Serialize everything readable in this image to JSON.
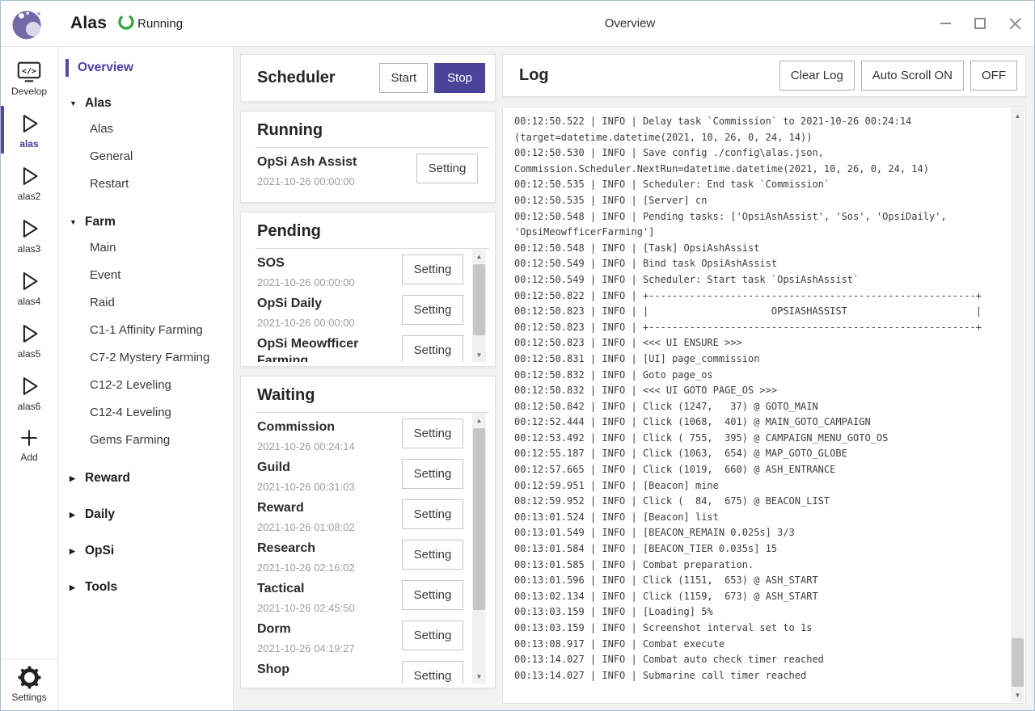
{
  "header": {
    "app_name": "Alas",
    "status": "Running",
    "window_title": "Overview"
  },
  "rail": {
    "items": [
      {
        "id": "develop",
        "label": "Develop",
        "icon": "develop",
        "active": false
      },
      {
        "id": "alas",
        "label": "alas",
        "icon": "play",
        "active": true
      },
      {
        "id": "alas2",
        "label": "alas2",
        "icon": "play",
        "active": false
      },
      {
        "id": "alas3",
        "label": "alas3",
        "icon": "play",
        "active": false
      },
      {
        "id": "alas4",
        "label": "alas4",
        "icon": "play",
        "active": false
      },
      {
        "id": "alas5",
        "label": "alas5",
        "icon": "play",
        "active": false
      },
      {
        "id": "alas6",
        "label": "alas6",
        "icon": "play",
        "active": false
      },
      {
        "id": "add",
        "label": "Add",
        "icon": "plus",
        "active": false
      }
    ],
    "settings_label": "Settings"
  },
  "nav": {
    "items": [
      {
        "type": "link",
        "label": "Overview",
        "active": true
      },
      {
        "type": "group",
        "label": "Alas",
        "expanded": true,
        "children": [
          "Alas",
          "General",
          "Restart"
        ]
      },
      {
        "type": "group",
        "label": "Farm",
        "expanded": true,
        "children": [
          "Main",
          "Event",
          "Raid",
          "C1-1 Affinity Farming",
          "C7-2 Mystery Farming",
          "C12-2 Leveling",
          "C12-4 Leveling",
          "Gems Farming"
        ]
      },
      {
        "type": "group",
        "label": "Reward",
        "expanded": false,
        "children": []
      },
      {
        "type": "group",
        "label": "Daily",
        "expanded": false,
        "children": []
      },
      {
        "type": "group",
        "label": "OpSi",
        "expanded": false,
        "children": []
      },
      {
        "type": "group",
        "label": "Tools",
        "expanded": false,
        "children": []
      }
    ]
  },
  "scheduler": {
    "title": "Scheduler",
    "start_label": "Start",
    "stop_label": "Stop",
    "setting_label": "Setting",
    "sections": [
      {
        "title": "Running",
        "tasks": [
          {
            "name": "OpSi Ash Assist",
            "time": "2021-10-26 00:00:00"
          }
        ]
      },
      {
        "title": "Pending",
        "tasks": [
          {
            "name": "SOS",
            "time": "2021-10-26 00:00:00"
          },
          {
            "name": "OpSi Daily",
            "time": "2021-10-26 00:00:00"
          },
          {
            "name": "OpSi Meowfficer Farming"
          }
        ]
      },
      {
        "title": "Waiting",
        "tasks": [
          {
            "name": "Commission",
            "time": "2021-10-26 00:24:14"
          },
          {
            "name": "Guild",
            "time": "2021-10-26 00:31:03"
          },
          {
            "name": "Reward",
            "time": "2021-10-26 01:08:02"
          },
          {
            "name": "Research",
            "time": "2021-10-26 02:16:02"
          },
          {
            "name": "Tactical",
            "time": "2021-10-26 02:45:50"
          },
          {
            "name": "Dorm",
            "time": "2021-10-26 04:19:27"
          },
          {
            "name": "Shop"
          }
        ]
      }
    ]
  },
  "log": {
    "title": "Log",
    "clear_label": "Clear Log",
    "autoscroll_on_label": "Auto Scroll ON",
    "autoscroll_off_label": "OFF",
    "lines": [
      "00:12:50.522 | INFO | Delay task `Commission` to 2021-10-26 00:24:14",
      "(target=datetime.datetime(2021, 10, 26, 0, 24, 14))",
      "00:12:50.530 | INFO | Save config ./config\\alas.json,",
      "Commission.Scheduler.NextRun=datetime.datetime(2021, 10, 26, 0, 24, 14)",
      "00:12:50.535 | INFO | Scheduler: End task `Commission`",
      "00:12:50.535 | INFO | [Server] cn",
      "00:12:50.548 | INFO | Pending tasks: ['OpsiAshAssist', 'Sos', 'OpsiDaily',",
      "'OpsiMeowfficerFarming']",
      "00:12:50.548 | INFO | [Task] OpsiAshAssist",
      "00:12:50.549 | INFO | Bind task OpsiAshAssist",
      "00:12:50.549 | INFO | Scheduler: Start task `OpsiAshAssist`",
      "00:12:50.822 | INFO | +--------------------------------------------------------+",
      "00:12:50.823 | INFO | |                     OPSIASHASSIST                      |",
      "00:12:50.823 | INFO | +--------------------------------------------------------+",
      "00:12:50.823 | INFO | <<< UI ENSURE >>>",
      "00:12:50.831 | INFO | [UI] page_commission",
      "00:12:50.832 | INFO | Goto page_os",
      "00:12:50.832 | INFO | <<< UI GOTO PAGE_OS >>>",
      "00:12:50.842 | INFO | Click (1247,   37) @ GOTO_MAIN",
      "00:12:52.444 | INFO | Click (1068,  401) @ MAIN_GOTO_CAMPAIGN",
      "00:12:53.492 | INFO | Click ( 755,  395) @ CAMPAIGN_MENU_GOTO_OS",
      "00:12:55.187 | INFO | Click (1063,  654) @ MAP_GOTO_GLOBE",
      "00:12:57.665 | INFO | Click (1019,  660) @ ASH_ENTRANCE",
      "00:12:59.951 | INFO | [Beacon] mine",
      "00:12:59.952 | INFO | Click (  84,  675) @ BEACON_LIST",
      "00:13:01.524 | INFO | [Beacon] list",
      "00:13:01.549 | INFO | [BEACON_REMAIN 0.025s] 3/3",
      "00:13:01.584 | INFO | [BEACON_TIER 0.035s] 15",
      "00:13:01.585 | INFO | Combat preparation.",
      "00:13:01.596 | INFO | Click (1151,  653) @ ASH_START",
      "00:13:02.134 | INFO | Click (1159,  673) @ ASH_START",
      "00:13:03.159 | INFO | [Loading] 5%",
      "00:13:03.159 | INFO | Screenshot interval set to 1s",
      "00:13:08.917 | INFO | Combat execute",
      "00:13:14.027 | INFO | Combat auto check timer reached",
      "00:13:14.027 | INFO | Submarine call timer reached"
    ]
  },
  "colors": {
    "accent": "#4c4299",
    "running_green": "#3ba648"
  }
}
